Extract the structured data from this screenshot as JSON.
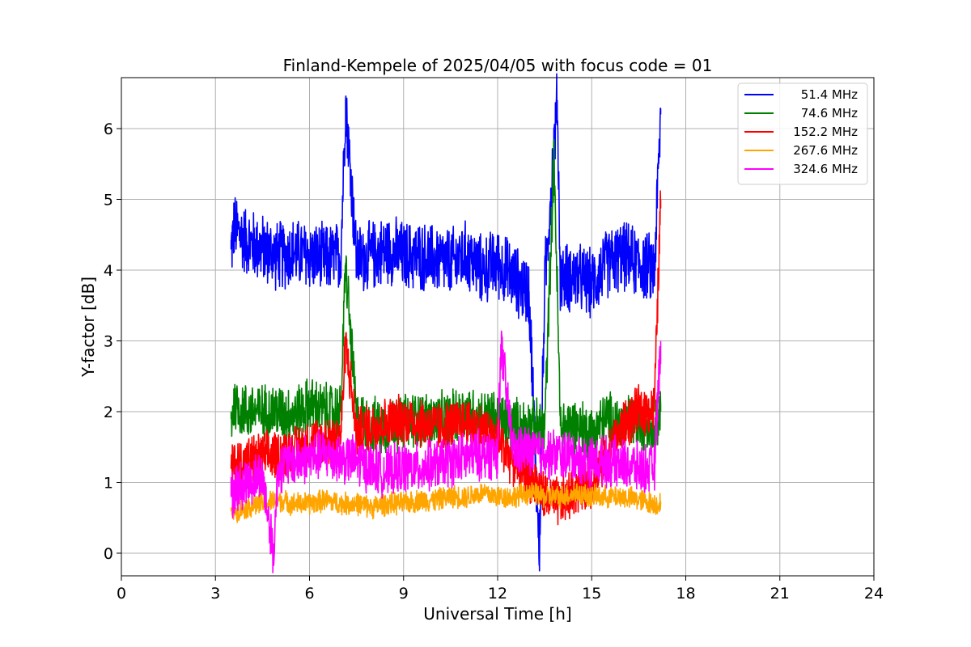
{
  "chart_data": {
    "type": "line",
    "title": "Finland-Kempele of 2025/04/05 with focus code = 01",
    "xlabel": "Universal Time [h]",
    "ylabel": "Y-factor [dB]",
    "xlim": [
      0,
      24
    ],
    "ylim": [
      -0.32,
      6.72
    ],
    "x_ticks": [
      0,
      3,
      6,
      9,
      12,
      15,
      18,
      21,
      24
    ],
    "y_ticks": [
      0,
      1,
      2,
      3,
      4,
      5,
      6
    ],
    "grid": true,
    "legend_position": "top-right",
    "series": [
      {
        "name": "51.4 MHz",
        "color": "#0000ff",
        "x": [
          3.5,
          3.6,
          4.0,
          4.5,
          5.0,
          5.5,
          6.0,
          6.5,
          7.0,
          7.15,
          7.5,
          8.0,
          8.5,
          9.0,
          9.5,
          10.0,
          10.5,
          11.0,
          11.5,
          12.0,
          12.5,
          12.8,
          13.0,
          13.33,
          13.5,
          13.9,
          14.0,
          14.5,
          15.0,
          15.5,
          16.0,
          16.5,
          17.0,
          17.2
        ],
        "y": [
          4.3,
          4.6,
          4.4,
          4.3,
          4.2,
          4.25,
          4.2,
          4.15,
          4.2,
          6.4,
          4.15,
          4.2,
          4.3,
          4.2,
          4.2,
          4.15,
          4.1,
          4.2,
          4.0,
          4.1,
          3.9,
          3.75,
          3.7,
          0.0,
          3.8,
          6.4,
          3.9,
          3.9,
          3.8,
          4.1,
          4.2,
          4.1,
          4.0,
          6.2
        ],
        "band": 0.55
      },
      {
        "name": "74.6 MHz",
        "color": "#008000",
        "x": [
          3.5,
          3.6,
          4.0,
          4.5,
          5.0,
          5.5,
          6.0,
          6.5,
          7.0,
          7.15,
          7.5,
          8.0,
          8.5,
          9.0,
          9.5,
          10.0,
          10.5,
          11.0,
          11.5,
          12.0,
          12.5,
          13.0,
          13.5,
          13.8,
          14.0,
          14.5,
          15.0,
          15.5,
          16.0,
          16.5,
          17.0,
          17.2
        ],
        "y": [
          1.9,
          2.1,
          2.0,
          2.0,
          2.0,
          1.95,
          2.1,
          2.0,
          2.0,
          4.1,
          1.9,
          1.8,
          1.8,
          1.85,
          1.9,
          1.85,
          1.9,
          2.0,
          1.9,
          1.9,
          1.8,
          1.8,
          1.75,
          5.65,
          1.8,
          1.8,
          1.7,
          1.9,
          1.8,
          1.9,
          1.8,
          2.0
        ],
        "band": 0.45
      },
      {
        "name": "152.2 MHz",
        "color": "#ff0000",
        "x": [
          3.5,
          3.6,
          4.0,
          4.5,
          5.0,
          5.5,
          6.0,
          6.5,
          7.0,
          7.15,
          7.5,
          8.0,
          8.5,
          9.0,
          9.5,
          10.0,
          10.5,
          11.0,
          11.5,
          12.0,
          12.5,
          13.0,
          13.5,
          14.0,
          14.5,
          15.0,
          15.5,
          16.0,
          16.5,
          17.0,
          17.2
        ],
        "y": [
          1.2,
          1.25,
          1.3,
          1.35,
          1.4,
          1.45,
          1.55,
          1.6,
          1.65,
          3.0,
          1.7,
          1.8,
          1.85,
          1.9,
          1.85,
          1.8,
          1.8,
          1.85,
          1.75,
          1.6,
          1.3,
          1.1,
          0.8,
          0.7,
          0.9,
          1.0,
          1.4,
          1.8,
          2.0,
          2.05,
          5.0
        ],
        "band": 0.4
      },
      {
        "name": "267.6 MHz",
        "color": "#ffa500",
        "x": [
          3.5,
          3.6,
          4.0,
          4.5,
          5.0,
          5.5,
          6.0,
          6.5,
          7.0,
          7.5,
          8.0,
          8.5,
          9.0,
          9.5,
          10.0,
          10.5,
          11.0,
          11.5,
          12.0,
          12.5,
          13.0,
          13.5,
          14.0,
          14.5,
          15.0,
          15.5,
          16.0,
          16.5,
          17.0,
          17.2
        ],
        "y": [
          0.6,
          0.6,
          0.65,
          0.7,
          0.75,
          0.7,
          0.7,
          0.75,
          0.7,
          0.7,
          0.65,
          0.7,
          0.7,
          0.75,
          0.75,
          0.8,
          0.8,
          0.85,
          0.8,
          0.8,
          0.85,
          0.8,
          0.8,
          0.85,
          0.8,
          0.8,
          0.8,
          0.75,
          0.7,
          0.7
        ],
        "band": 0.18
      },
      {
        "name": "324.6 MHz",
        "color": "#ff00ff",
        "x": [
          3.5,
          3.6,
          4.0,
          4.5,
          4.85,
          5.0,
          5.5,
          6.0,
          6.5,
          7.0,
          7.5,
          8.0,
          8.5,
          9.0,
          9.5,
          10.0,
          10.5,
          11.0,
          11.5,
          12.0,
          12.1,
          12.5,
          13.0,
          13.5,
          14.0,
          14.5,
          15.0,
          15.5,
          16.0,
          16.5,
          17.0,
          17.2
        ],
        "y": [
          0.8,
          0.9,
          1.0,
          1.1,
          0.0,
          1.2,
          1.3,
          1.35,
          1.4,
          1.35,
          1.3,
          1.2,
          1.15,
          1.2,
          1.2,
          1.25,
          1.3,
          1.35,
          1.4,
          1.4,
          2.95,
          1.45,
          1.45,
          1.4,
          1.4,
          1.35,
          1.3,
          1.3,
          1.25,
          1.2,
          1.2,
          3.0
        ],
        "band": 0.4
      }
    ]
  }
}
